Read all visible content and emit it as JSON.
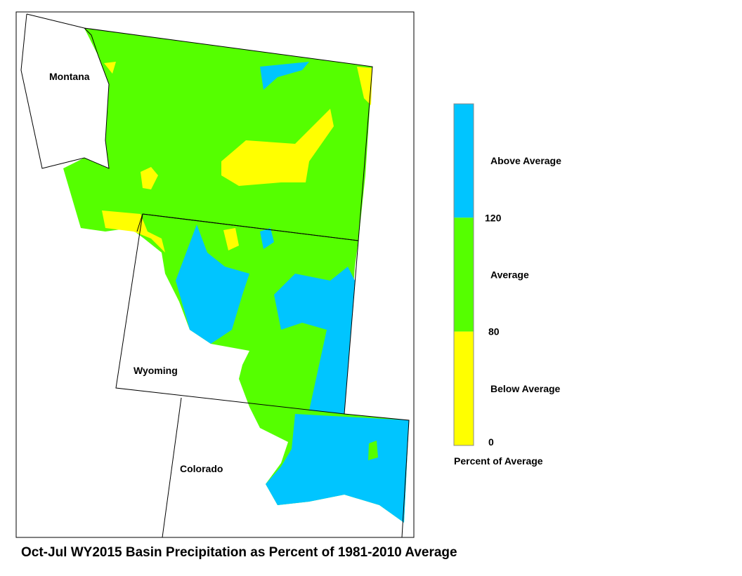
{
  "title": "Oct-Jul WY2015 Basin Precipitation as Percent of 1981-2010 Average",
  "states": [
    {
      "label": "Montana"
    },
    {
      "label": "Wyoming"
    },
    {
      "label": "Colorado"
    }
  ],
  "legend": {
    "title": "Percent of Average",
    "classes": [
      {
        "label": "Above Average",
        "color": "#00c5ff"
      },
      {
        "label": "Average",
        "color": "#55ff00"
      },
      {
        "label": "Below Average",
        "color": "#ffff00"
      }
    ],
    "breaks": [
      120,
      80,
      0
    ]
  }
}
